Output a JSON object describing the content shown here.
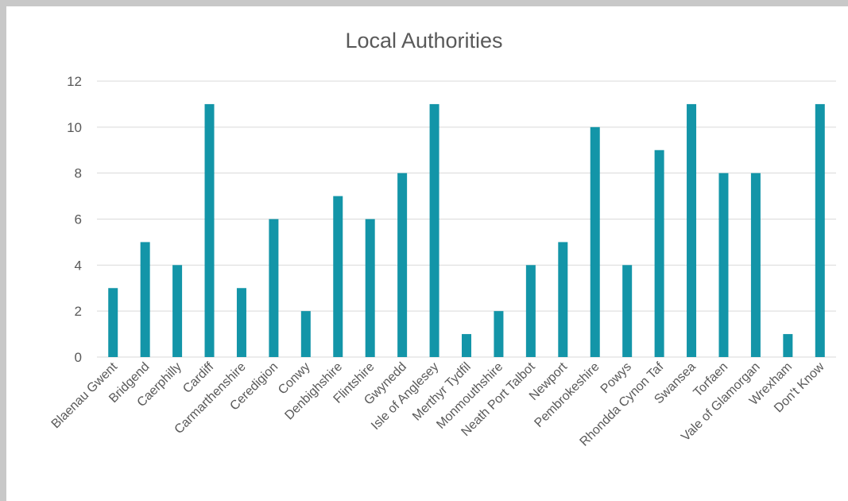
{
  "chart_data": {
    "type": "bar",
    "title": "Local Authorities",
    "categories": [
      "Blaenau Gwent",
      "Bridgend",
      "Caerphilly",
      "Cardiff",
      "Carmarthenshire",
      "Ceredigion",
      "Conwy",
      "Denbighshire",
      "Flintshire",
      "Gwynedd",
      "Isle of Anglesey",
      "Merthyr Tydfil",
      "Monmouthshire",
      "Neath Port Talbot",
      "Newport",
      "Pembrokeshire",
      "Powys",
      "Rhondda Cynon Taf",
      "Swansea",
      "Torfaen",
      "Vale of Glamorgan",
      "Wrexham",
      "Don't Know"
    ],
    "values": [
      3,
      5,
      4,
      11,
      3,
      6,
      2,
      7,
      6,
      8,
      11,
      1,
      2,
      4,
      5,
      10,
      4,
      9,
      11,
      8,
      8,
      1,
      11
    ],
    "ylim": [
      0,
      12
    ],
    "yticks": [
      0,
      2,
      4,
      6,
      8,
      10,
      12
    ],
    "grid": true,
    "legend": "none",
    "bar_color": "#1395a8",
    "grid_color": "#d9d9d9"
  }
}
